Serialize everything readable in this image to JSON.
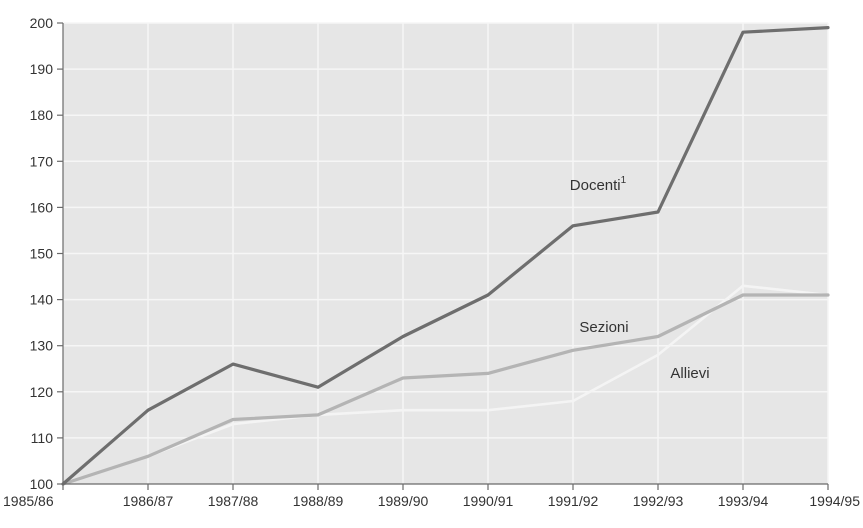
{
  "chart_data": {
    "type": "line",
    "title": "",
    "xlabel": "",
    "ylabel": "",
    "categories": [
      "1985/86",
      "1986/87",
      "1987/88",
      "1988/89",
      "1989/90",
      "1990/91",
      "1991/92",
      "1992/93",
      "1993/94",
      "1994/95"
    ],
    "ylim": [
      100,
      200
    ],
    "yticks": [
      100,
      110,
      120,
      130,
      140,
      150,
      160,
      170,
      180,
      190,
      200
    ],
    "grid": true,
    "series": [
      {
        "name": "Docenti",
        "superscript": "1",
        "color": "#6e6e6e",
        "values": [
          100,
          116,
          126,
          121,
          132,
          141,
          156,
          159,
          198,
          199
        ]
      },
      {
        "name": "Sezioni",
        "color": "#b4b4b4",
        "values": [
          100,
          106,
          114,
          115,
          123,
          124,
          129,
          132,
          141,
          141
        ]
      },
      {
        "name": "Allievi",
        "color": "#f4f4f4",
        "values": [
          100,
          106,
          113,
          115,
          116,
          116,
          118,
          128,
          143,
          141
        ]
      }
    ]
  },
  "colors": {
    "plot_background": "#e6e6e6",
    "grid": "#f6f6f6",
    "axis": "#6a6a6a"
  }
}
